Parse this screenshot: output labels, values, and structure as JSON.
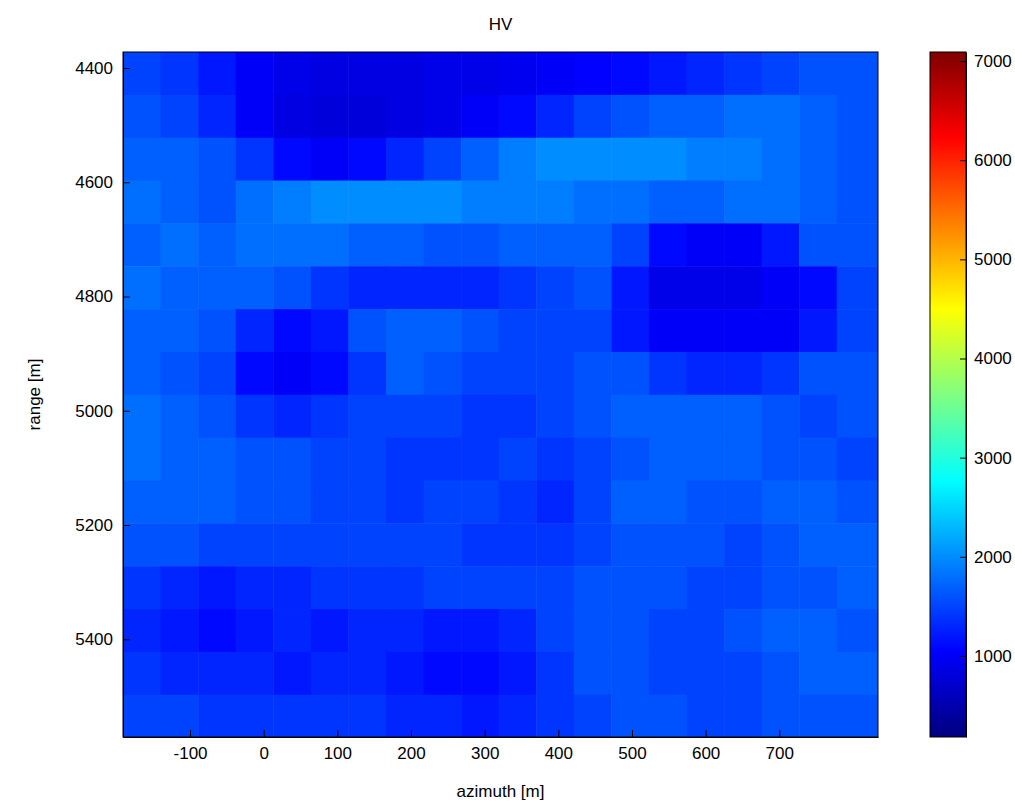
{
  "chart_data": {
    "type": "heatmap",
    "title": "HV",
    "x_label": "azimuth [m]",
    "y_label": "range [m]",
    "color": "jet",
    "xlim": [
      -191,
      834
    ],
    "ylim": [
      4372,
      5571
    ],
    "xticks": [
      -100,
      0,
      100,
      200,
      300,
      400,
      500,
      600,
      700
    ],
    "yticks": [
      4400,
      4600,
      4800,
      5000,
      5200,
      5400
    ],
    "x_edges": [
      -191,
      -140,
      -89,
      -38,
      13,
      64,
      115,
      166,
      217,
      268,
      319,
      370,
      421,
      472,
      523,
      574,
      625,
      676,
      727,
      778,
      834
    ],
    "y_edges": [
      4372,
      4447,
      4522,
      4597,
      4672,
      4747,
      4822,
      4897,
      4972,
      5047,
      5122,
      5197,
      5272,
      5347,
      5422,
      5497,
      5571
    ],
    "values": [
      [
        1500,
        1400,
        1200,
        1000,
        900,
        850,
        850,
        850,
        900,
        900,
        950,
        1000,
        1050,
        1100,
        1200,
        1300,
        1400,
        1500,
        1600,
        1600
      ],
      [
        1600,
        1500,
        1300,
        1000,
        850,
        800,
        800,
        850,
        900,
        1000,
        1100,
        1300,
        1500,
        1600,
        1700,
        1700,
        1800,
        1800,
        1700,
        1600
      ],
      [
        1700,
        1700,
        1600,
        1400,
        1100,
        1000,
        1100,
        1300,
        1500,
        1700,
        1900,
        2000,
        2000,
        2000,
        2000,
        1900,
        1900,
        1800,
        1700,
        1600
      ],
      [
        1800,
        1700,
        1600,
        1800,
        1900,
        2000,
        2000,
        2000,
        2000,
        1900,
        1900,
        1900,
        1800,
        1800,
        1700,
        1700,
        1800,
        1800,
        1700,
        1600
      ],
      [
        1700,
        1800,
        1700,
        1800,
        1800,
        1800,
        1700,
        1700,
        1600,
        1600,
        1700,
        1700,
        1700,
        1500,
        1100,
        1000,
        1000,
        1200,
        1600,
        1600
      ],
      [
        1800,
        1700,
        1700,
        1700,
        1600,
        1400,
        1300,
        1300,
        1300,
        1300,
        1400,
        1500,
        1600,
        1200,
        900,
        900,
        900,
        1000,
        1100,
        1500
      ],
      [
        1700,
        1700,
        1600,
        1300,
        1100,
        1200,
        1600,
        1700,
        1700,
        1600,
        1500,
        1500,
        1500,
        1200,
        1000,
        1000,
        1000,
        1000,
        1200,
        1500
      ],
      [
        1700,
        1600,
        1500,
        1100,
        1000,
        1100,
        1400,
        1700,
        1600,
        1500,
        1500,
        1500,
        1600,
        1600,
        1400,
        1300,
        1300,
        1400,
        1600,
        1600
      ],
      [
        1800,
        1700,
        1600,
        1400,
        1300,
        1400,
        1500,
        1500,
        1500,
        1400,
        1400,
        1500,
        1600,
        1700,
        1700,
        1700,
        1700,
        1600,
        1500,
        1600
      ],
      [
        1800,
        1700,
        1700,
        1600,
        1600,
        1500,
        1500,
        1400,
        1400,
        1400,
        1500,
        1400,
        1500,
        1600,
        1700,
        1700,
        1700,
        1600,
        1600,
        1500
      ],
      [
        1700,
        1700,
        1700,
        1600,
        1600,
        1500,
        1500,
        1400,
        1500,
        1500,
        1400,
        1300,
        1500,
        1700,
        1700,
        1600,
        1600,
        1700,
        1700,
        1600
      ],
      [
        1600,
        1600,
        1500,
        1500,
        1500,
        1500,
        1500,
        1500,
        1500,
        1400,
        1400,
        1400,
        1500,
        1600,
        1600,
        1600,
        1500,
        1600,
        1700,
        1700
      ],
      [
        1400,
        1300,
        1200,
        1300,
        1300,
        1400,
        1400,
        1400,
        1500,
        1500,
        1500,
        1500,
        1600,
        1600,
        1600,
        1500,
        1500,
        1600,
        1600,
        1700
      ],
      [
        1300,
        1200,
        1100,
        1200,
        1300,
        1200,
        1300,
        1300,
        1200,
        1200,
        1300,
        1500,
        1600,
        1600,
        1500,
        1500,
        1600,
        1700,
        1700,
        1600
      ],
      [
        1400,
        1300,
        1300,
        1300,
        1200,
        1300,
        1300,
        1200,
        1100,
        1100,
        1200,
        1400,
        1600,
        1600,
        1500,
        1500,
        1500,
        1600,
        1700,
        1700
      ],
      [
        1500,
        1500,
        1400,
        1400,
        1400,
        1400,
        1400,
        1300,
        1300,
        1200,
        1300,
        1400,
        1500,
        1600,
        1600,
        1500,
        1500,
        1600,
        1600,
        1600
      ]
    ],
    "colorbar": {
      "range": [
        183,
        7091
      ],
      "ticks": [
        1000,
        2000,
        3000,
        4000,
        5000,
        6000,
        7000
      ]
    }
  }
}
